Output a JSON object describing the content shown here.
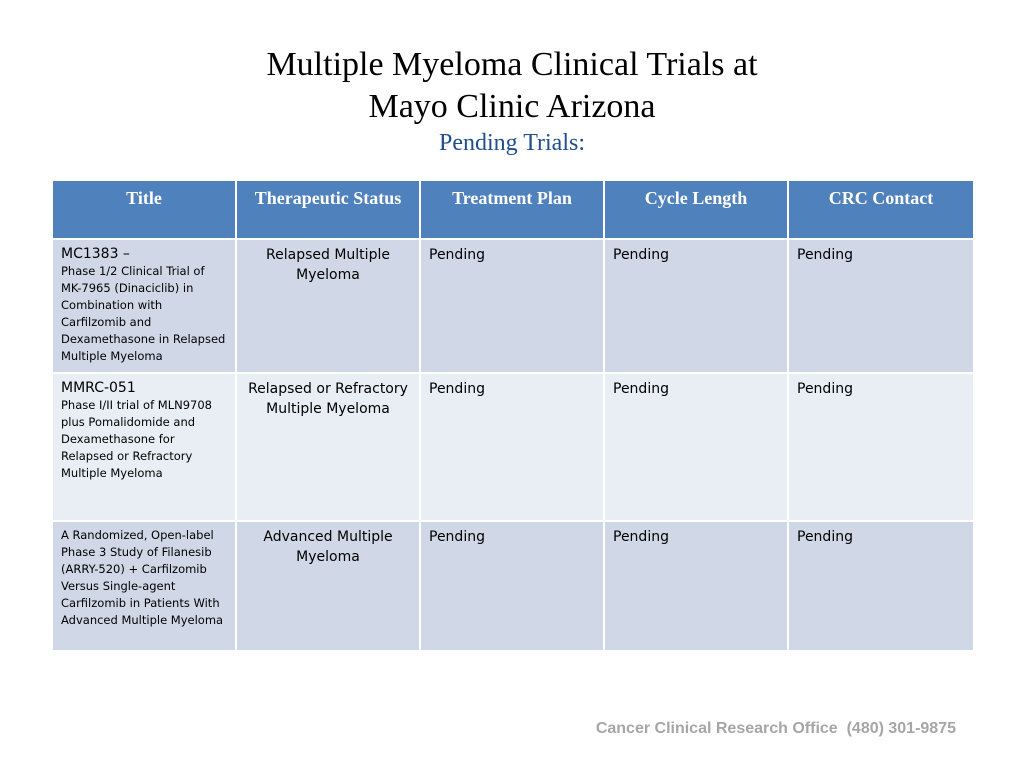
{
  "title": {
    "line1": "Multiple Myeloma Clinical Trials at",
    "line2": "Mayo Clinic Arizona",
    "subtitle": "Pending Trials:"
  },
  "table": {
    "headers": [
      "Title",
      "Therapeutic Status",
      "Treatment Plan",
      "Cycle Length",
      "CRC Contact"
    ],
    "rows": [
      {
        "code": "MC1383 –",
        "description": "Phase 1/2 Clinical Trial of MK-7965 (Dinaciclib) in Combination with Carfilzomib and Dexamethasone in Relapsed Multiple Myeloma",
        "status": "Relapsed Multiple Myeloma",
        "treatment_plan": "Pending",
        "cycle_length": "Pending",
        "crc_contact": "Pending"
      },
      {
        "code": "MMRC-051",
        "description": "Phase I/II trial of MLN9708 plus Pomalidomide and Dexamethasone for Relapsed or Refractory Multiple Myeloma",
        "status": "Relapsed or Refractory Multiple Myeloma",
        "treatment_plan": "Pending",
        "cycle_length": "Pending",
        "crc_contact": "Pending"
      },
      {
        "code": "",
        "description": "A Randomized, Open-label Phase 3 Study of Filanesib (ARRY-520) + Carfilzomib Versus Single-agent Carfilzomib in Patients With Advanced Multiple Myeloma",
        "status": "Advanced Multiple Myeloma",
        "treatment_plan": "Pending",
        "cycle_length": "Pending",
        "crc_contact": "Pending"
      }
    ]
  },
  "footer": {
    "text": "Cancer Clinical Research Office  (480) 301-9875"
  },
  "colors": {
    "header_bg": "#4f81bd",
    "row_dark": "#d0d8e8",
    "row_light": "#e9edf4",
    "subtitle": "#1f4e8c",
    "footer": "#a6a6a6"
  }
}
